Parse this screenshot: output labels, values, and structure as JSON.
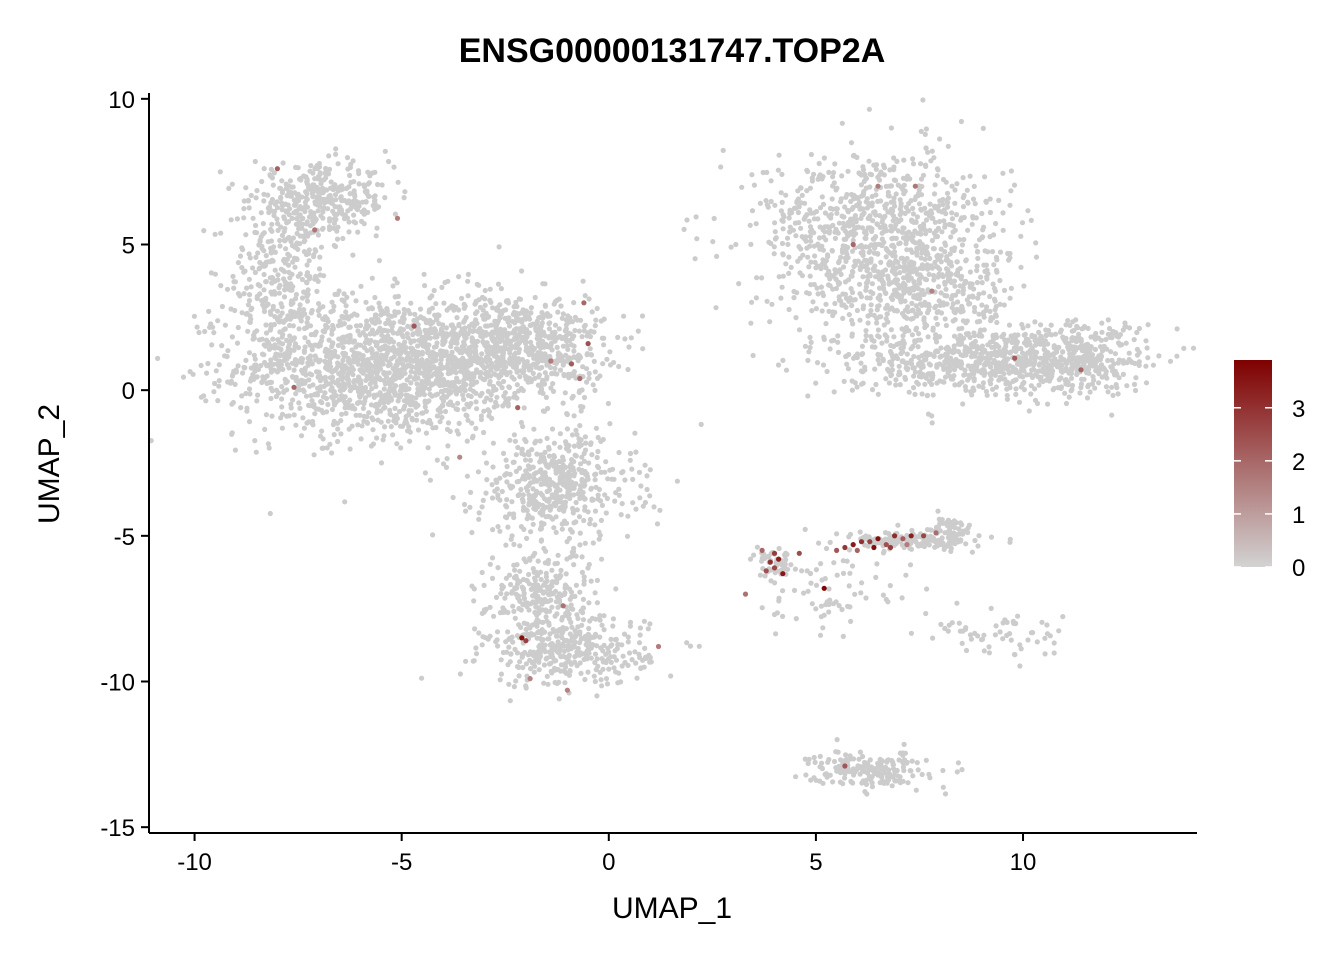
{
  "chart_data": {
    "type": "scatter",
    "title": "ENSG00000131747.TOP2A",
    "xlabel": "UMAP_1",
    "ylabel": "UMAP_2",
    "xlim": [
      -11.1,
      14.2
    ],
    "ylim": [
      -15.2,
      10.2
    ],
    "x_ticks": [
      "-10",
      "-5",
      "0",
      "5",
      "10"
    ],
    "x_tick_values": [
      -10,
      -5,
      0,
      5,
      10
    ],
    "y_ticks": [
      "10",
      "5",
      "0",
      "-5",
      "-10",
      "-15"
    ],
    "y_tick_values": [
      10,
      5,
      0,
      -5,
      -10,
      -15
    ],
    "grid": false,
    "legend": {
      "placement": "right",
      "min": 0,
      "max": 3.9,
      "ticks": [
        "3",
        "2",
        "1",
        "0"
      ],
      "tick_values": [
        3,
        2,
        1,
        0
      ],
      "color_low": "#d3d3d3",
      "color_high": "#7f0000"
    },
    "base_color": "#cccccc",
    "clusters": [
      {
        "x": -5.5,
        "y": 0.8,
        "sx": 2.3,
        "sy": 1.6,
        "n": 1500
      },
      {
        "x": -2.2,
        "y": 1.5,
        "sx": 1.4,
        "sy": 1.2,
        "n": 700
      },
      {
        "x": -1.3,
        "y": -3.3,
        "sx": 1.3,
        "sy": 1.3,
        "n": 500
      },
      {
        "x": -6.9,
        "y": 6.5,
        "sx": 1.1,
        "sy": 0.8,
        "n": 350
      },
      {
        "x": -8.0,
        "y": 3.8,
        "sx": 0.8,
        "sy": 1.8,
        "n": 300
      },
      {
        "x": -1.6,
        "y": -7.0,
        "sx": 0.9,
        "sy": 1.0,
        "n": 250
      },
      {
        "x": -1.0,
        "y": -9.0,
        "sx": 1.3,
        "sy": 0.8,
        "n": 350
      },
      {
        "x": 6.5,
        "y": 5.5,
        "sx": 2.0,
        "sy": 1.8,
        "n": 850
      },
      {
        "x": 9.0,
        "y": 1.0,
        "sx": 2.3,
        "sy": 0.8,
        "n": 700
      },
      {
        "x": 11.4,
        "y": 1.2,
        "sx": 1.0,
        "sy": 0.8,
        "n": 250
      },
      {
        "x": 7.5,
        "y": 3.3,
        "sx": 1.6,
        "sy": 1.1,
        "n": 350
      },
      {
        "x": 7.3,
        "y": -5.2,
        "sx": 1.0,
        "sy": 0.2,
        "n": 150
      },
      {
        "x": 8.2,
        "y": -4.8,
        "sx": 0.4,
        "sy": 0.3,
        "n": 60
      },
      {
        "x": 6.3,
        "y": -13.0,
        "sx": 0.9,
        "sy": 0.4,
        "n": 200
      },
      {
        "x": 9.5,
        "y": -8.5,
        "sx": 1.2,
        "sy": 0.5,
        "n": 60
      },
      {
        "x": 4.0,
        "y": -6.0,
        "sx": 0.35,
        "sy": 0.35,
        "n": 50
      },
      {
        "x": 5.5,
        "y": -7.0,
        "sx": 1.2,
        "sy": 1.0,
        "n": 70
      }
    ],
    "expressing_points": [
      {
        "x": 3.9,
        "y": -5.9,
        "v": 3.0
      },
      {
        "x": 4.0,
        "y": -6.1,
        "v": 2.6
      },
      {
        "x": 4.1,
        "y": -5.8,
        "v": 3.3
      },
      {
        "x": 3.8,
        "y": -6.2,
        "v": 2.4
      },
      {
        "x": 4.2,
        "y": -6.3,
        "v": 3.5
      },
      {
        "x": 3.7,
        "y": -5.5,
        "v": 2.0
      },
      {
        "x": 4.0,
        "y": -5.6,
        "v": 2.8
      },
      {
        "x": 3.3,
        "y": -7.0,
        "v": 1.8
      },
      {
        "x": 4.6,
        "y": -5.6,
        "v": 2.5
      },
      {
        "x": 5.2,
        "y": -6.8,
        "v": 3.8
      },
      {
        "x": 5.9,
        "y": -5.3,
        "v": 3.4
      },
      {
        "x": 6.1,
        "y": -5.2,
        "v": 3.0
      },
      {
        "x": 6.3,
        "y": -5.2,
        "v": 2.7
      },
      {
        "x": 6.5,
        "y": -5.1,
        "v": 3.6
      },
      {
        "x": 6.7,
        "y": -5.3,
        "v": 2.4
      },
      {
        "x": 6.9,
        "y": -5.0,
        "v": 3.1
      },
      {
        "x": 7.1,
        "y": -5.1,
        "v": 2.2
      },
      {
        "x": 7.3,
        "y": -5.0,
        "v": 3.3
      },
      {
        "x": 5.7,
        "y": -5.4,
        "v": 2.9
      },
      {
        "x": 6.0,
        "y": -5.5,
        "v": 2.1
      },
      {
        "x": 6.4,
        "y": -5.4,
        "v": 3.7
      },
      {
        "x": 7.6,
        "y": -5.0,
        "v": 2.6
      },
      {
        "x": 7.9,
        "y": -4.9,
        "v": 1.9
      },
      {
        "x": 5.5,
        "y": -5.5,
        "v": 2.3
      },
      {
        "x": 6.8,
        "y": -5.4,
        "v": 2.8
      },
      {
        "x": 7.2,
        "y": -5.3,
        "v": 1.6
      },
      {
        "x": -0.9,
        "y": 0.9,
        "v": 2.2
      },
      {
        "x": -0.7,
        "y": 0.4,
        "v": 1.9
      },
      {
        "x": -0.5,
        "y": 1.6,
        "v": 2.4
      },
      {
        "x": -0.6,
        "y": 3.0,
        "v": 2.0
      },
      {
        "x": -1.4,
        "y": 1.0,
        "v": 1.6
      },
      {
        "x": -2.2,
        "y": -0.6,
        "v": 2.1
      },
      {
        "x": -4.7,
        "y": 2.2,
        "v": 2.3
      },
      {
        "x": -7.6,
        "y": 0.1,
        "v": 2.0
      },
      {
        "x": -2.1,
        "y": -8.5,
        "v": 3.6
      },
      {
        "x": -2.0,
        "y": -8.6,
        "v": 2.7
      },
      {
        "x": -1.1,
        "y": -7.4,
        "v": 1.8
      },
      {
        "x": -1.9,
        "y": -9.9,
        "v": 1.5
      },
      {
        "x": -8.0,
        "y": 7.6,
        "v": 2.1
      },
      {
        "x": -7.1,
        "y": 5.5,
        "v": 1.7
      },
      {
        "x": -5.1,
        "y": 5.9,
        "v": 1.6
      },
      {
        "x": 7.4,
        "y": 7.0,
        "v": 1.7
      },
      {
        "x": 6.5,
        "y": 7.0,
        "v": 1.6
      },
      {
        "x": 5.9,
        "y": 5.0,
        "v": 2.0
      },
      {
        "x": 9.8,
        "y": 1.1,
        "v": 2.2
      },
      {
        "x": 11.4,
        "y": 0.7,
        "v": 2.0
      },
      {
        "x": 7.8,
        "y": 3.4,
        "v": 1.5
      },
      {
        "x": 1.2,
        "y": -8.8,
        "v": 1.6
      },
      {
        "x": -3.6,
        "y": -2.3,
        "v": 1.4
      },
      {
        "x": -1.0,
        "y": -10.3,
        "v": 1.5
      },
      {
        "x": 5.7,
        "y": -12.9,
        "v": 2.3
      }
    ]
  }
}
